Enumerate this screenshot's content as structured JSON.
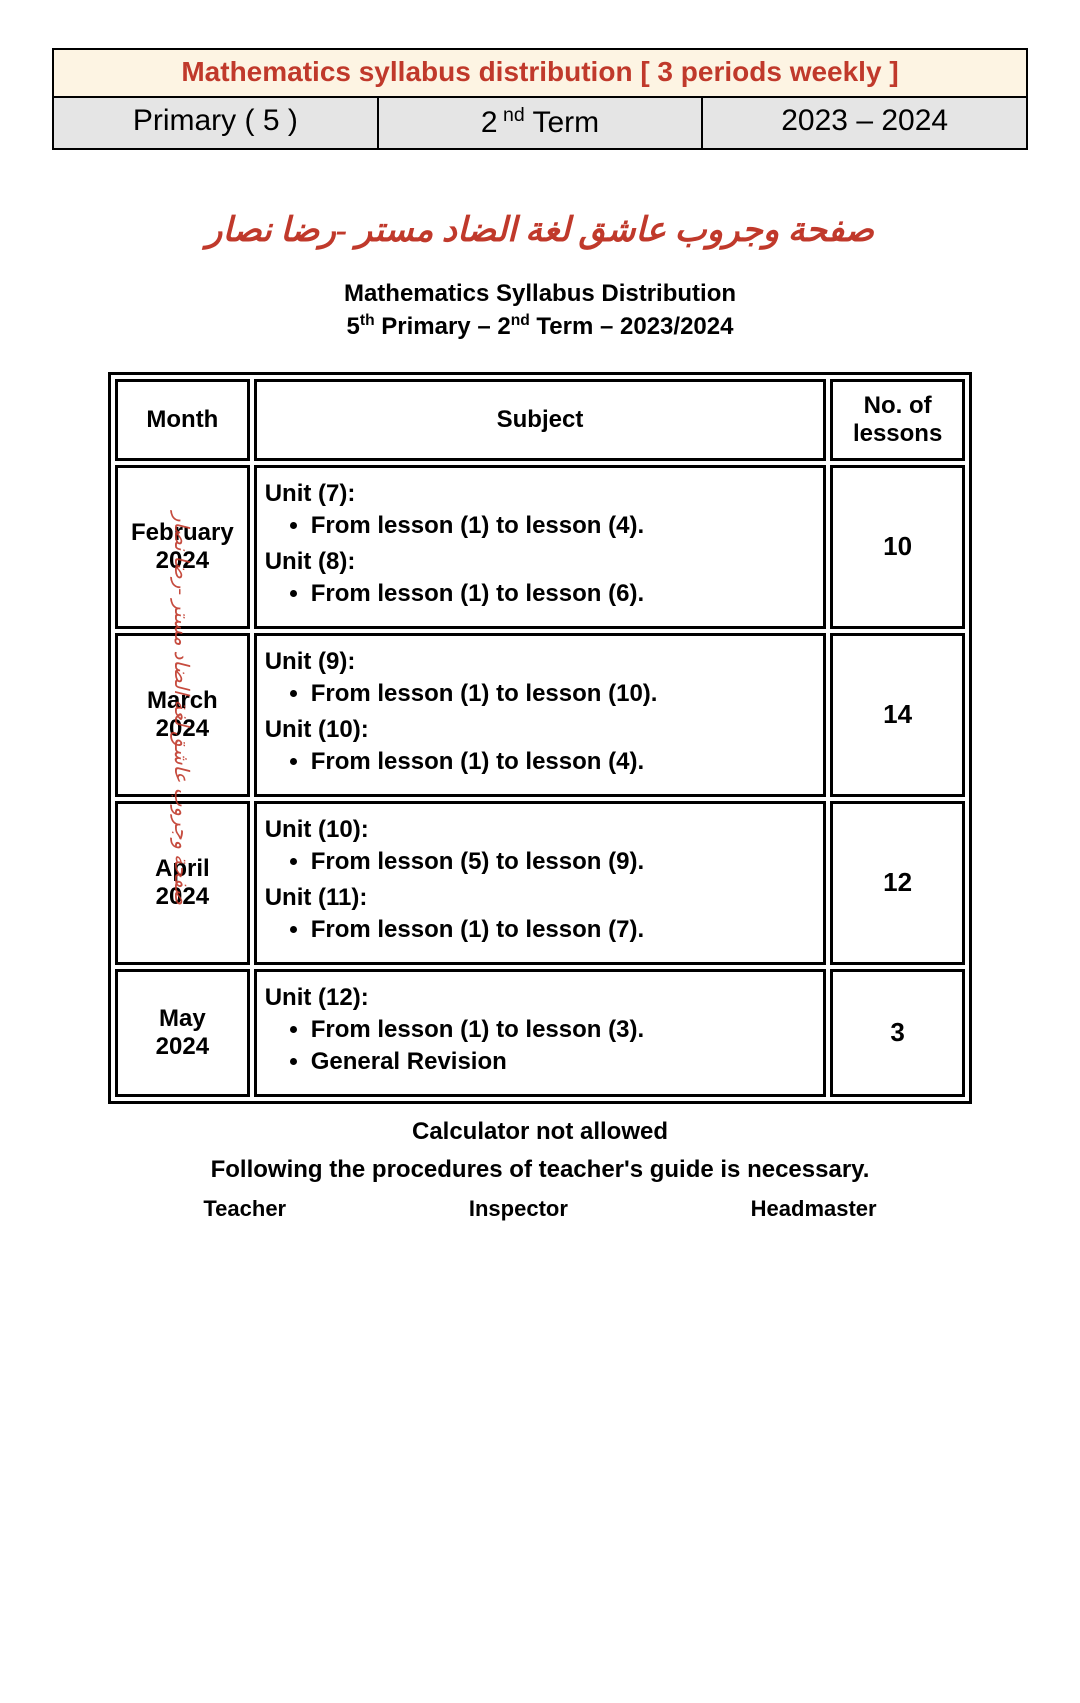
{
  "header": {
    "title": "Mathematics syllabus distribution [ 3 periods weekly ]",
    "cells": [
      "Primary ( 5 )",
      "2 nd Term",
      "2023 – 2024"
    ]
  },
  "arabic_line": "صفحة وجروب عاشق لغة الضاد مستر -رضا نصار",
  "subhead_line1": "Mathematics Syllabus Distribution",
  "subhead_line2": "5th Primary – 2nd Term – 2023/2024",
  "table": {
    "head": {
      "c1": "Month",
      "c2": "Subject",
      "c3": "No. of lessons"
    },
    "rows": [
      {
        "month": "February 2024",
        "units": [
          {
            "title": "Unit (7):",
            "items": [
              "From lesson (1) to lesson (4)."
            ]
          },
          {
            "title": "Unit (8):",
            "items": [
              "From lesson (1) to lesson (6)."
            ]
          }
        ],
        "lessons": "10"
      },
      {
        "month": "March 2024",
        "units": [
          {
            "title": "Unit (9):",
            "items": [
              "From lesson (1) to lesson (10)."
            ]
          },
          {
            "title": "Unit (10):",
            "items": [
              "From lesson (1) to lesson (4)."
            ]
          }
        ],
        "lessons": "14"
      },
      {
        "month": "April 2024",
        "units": [
          {
            "title": "Unit (10):",
            "items": [
              "From lesson (5) to lesson (9)."
            ]
          },
          {
            "title": "Unit (11):",
            "items": [
              "From lesson (1) to lesson (7)."
            ]
          }
        ],
        "lessons": "12"
      },
      {
        "month": "May 2024",
        "units": [
          {
            "title": "Unit (12):",
            "items": [
              "From lesson (1) to lesson (3).",
              "General Revision"
            ]
          }
        ],
        "lessons": "3"
      }
    ]
  },
  "watermark": "صفحة وجروب عاشق لغة الضاد مستر -رضا نصار",
  "note1": "Calculator not allowed",
  "note2": "Following the procedures of teacher's guide is necessary.",
  "sig": {
    "a": "Teacher",
    "b": "Inspector",
    "c": "Headmaster"
  }
}
